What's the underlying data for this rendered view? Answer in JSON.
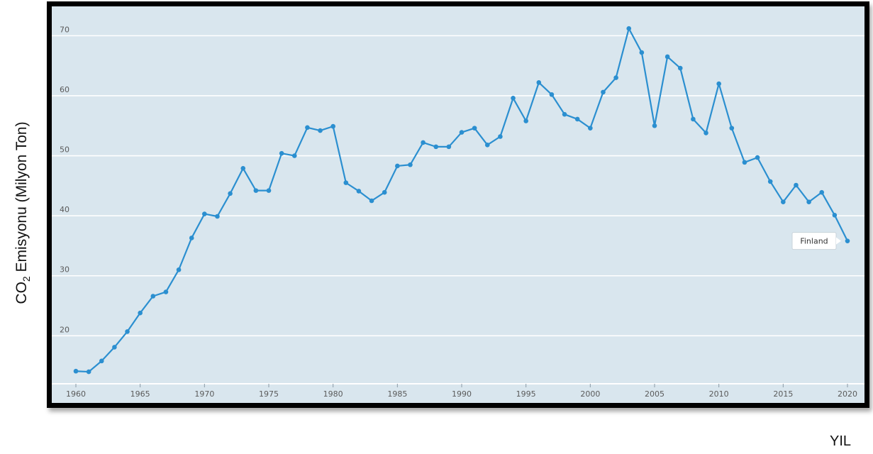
{
  "chart_data": {
    "type": "line",
    "ylabel_prefix": "CO",
    "ylabel_sub": "2",
    "ylabel_rest": " Emisyonu (Milyon Ton)",
    "xlabel": "YIL",
    "series": [
      {
        "name": "Finland",
        "color": "#2b8fd0",
        "x": [
          1960,
          1961,
          1962,
          1963,
          1964,
          1965,
          1966,
          1967,
          1968,
          1969,
          1970,
          1971,
          1972,
          1973,
          1974,
          1975,
          1976,
          1977,
          1978,
          1979,
          1980,
          1981,
          1982,
          1983,
          1984,
          1985,
          1986,
          1987,
          1988,
          1989,
          1990,
          1991,
          1992,
          1993,
          1994,
          1995,
          1996,
          1997,
          1998,
          1999,
          2000,
          2001,
          2002,
          2003,
          2004,
          2005,
          2006,
          2007,
          2008,
          2009,
          2010,
          2011,
          2012,
          2013,
          2014,
          2015,
          2016,
          2017,
          2018,
          2019,
          2020
        ],
        "values": [
          14.1,
          14.0,
          15.8,
          18.1,
          20.7,
          23.8,
          26.6,
          27.3,
          31.0,
          36.3,
          40.3,
          39.9,
          43.7,
          47.9,
          44.2,
          44.2,
          50.4,
          50.0,
          54.7,
          54.2,
          54.9,
          45.5,
          44.1,
          42.5,
          43.9,
          48.3,
          48.5,
          52.2,
          51.5,
          51.5,
          53.9,
          54.6,
          51.8,
          53.2,
          59.6,
          55.8,
          62.2,
          60.2,
          56.9,
          56.1,
          54.6,
          60.6,
          63.0,
          71.2,
          67.2,
          55.0,
          66.5,
          64.6,
          56.1,
          53.8,
          62.0,
          54.6,
          48.9,
          49.7,
          45.7,
          42.3,
          45.1,
          42.3,
          43.9,
          40.1,
          35.8
        ]
      }
    ],
    "xticks": [
      "1960",
      "1965",
      "1970",
      "1975",
      "1980",
      "1985",
      "1990",
      "1995",
      "2000",
      "2005",
      "2010",
      "2015",
      "2020"
    ],
    "yticks": [
      "20",
      "30",
      "40",
      "50",
      "60",
      "70"
    ],
    "xlim": [
      1960,
      2020
    ],
    "ylim": [
      12,
      73
    ],
    "grid": "horizontal",
    "series_label": "Finland"
  }
}
